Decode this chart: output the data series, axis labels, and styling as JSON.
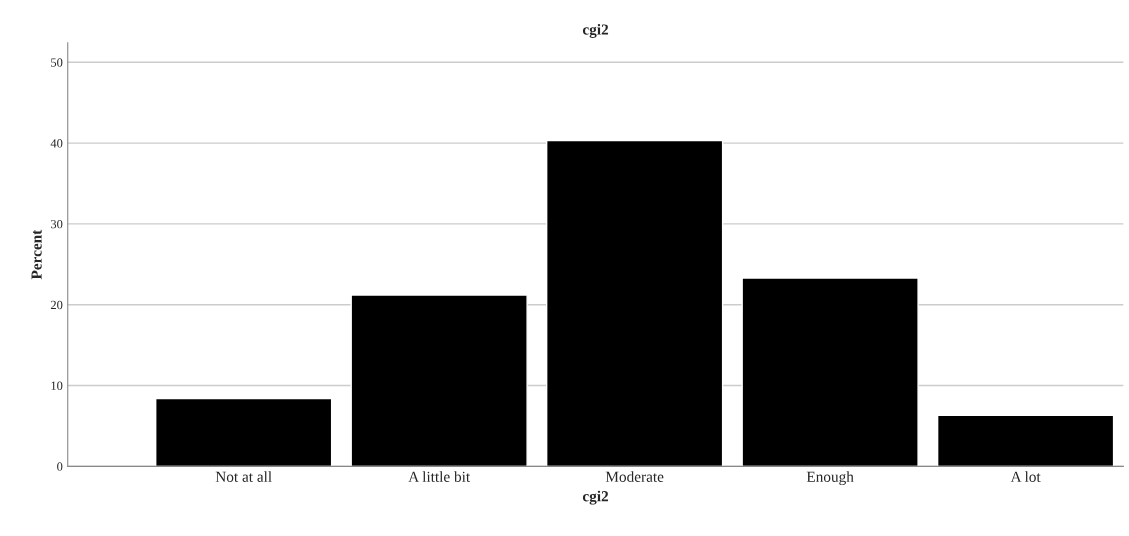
{
  "chart_data": {
    "type": "bar",
    "title": "cgi2",
    "xlabel": "cgi2",
    "ylabel": "Percent",
    "categories": [
      "Not at all",
      "A little bit",
      "Moderate",
      "Enough",
      "A lot"
    ],
    "values": [
      8.4,
      21.2,
      40.3,
      23.3,
      6.3
    ],
    "color": "#000000",
    "ylim": [
      0,
      52.4
    ],
    "yticks": [
      0,
      10,
      20,
      30,
      40,
      50
    ],
    "grid": "y"
  }
}
